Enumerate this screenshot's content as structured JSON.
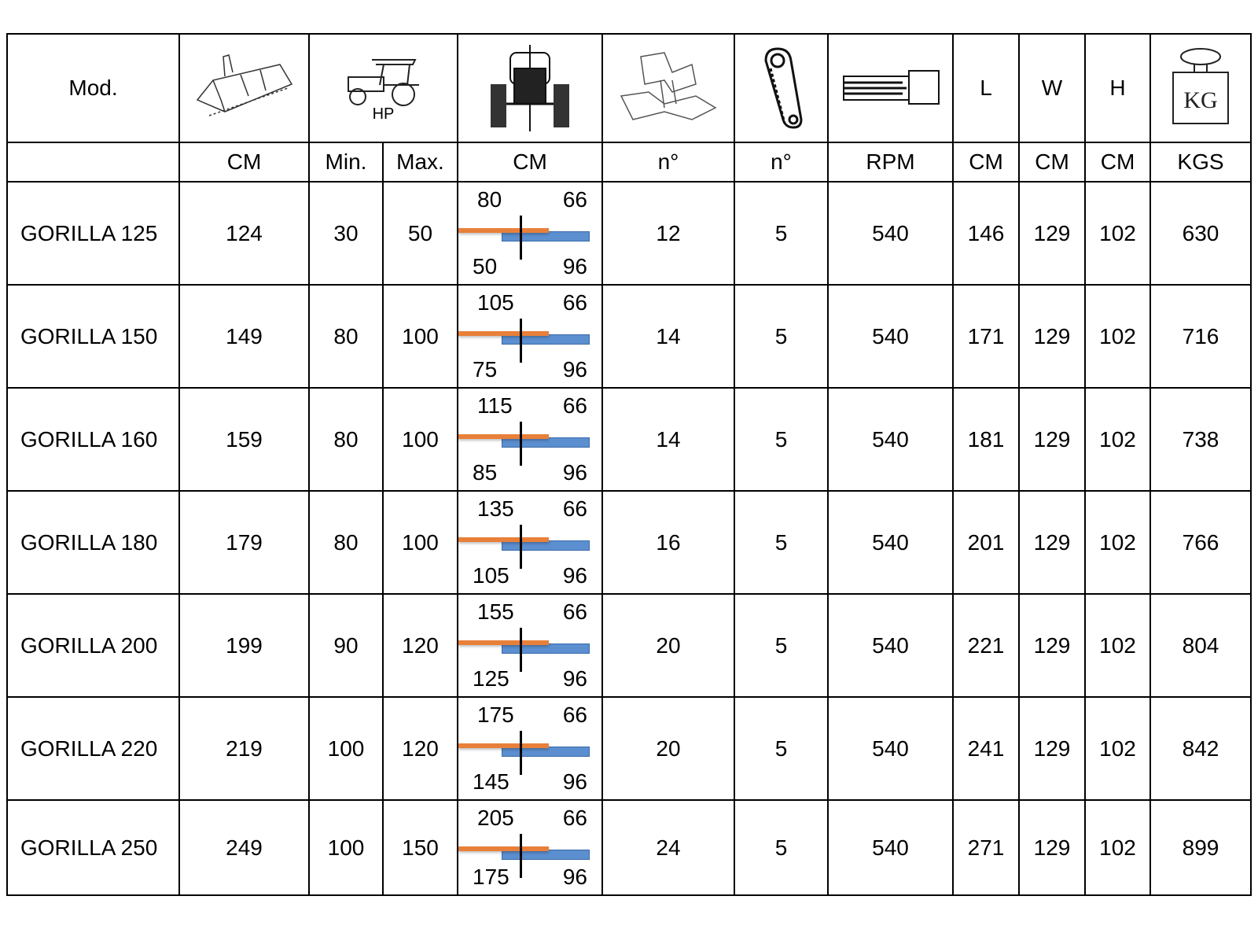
{
  "header": {
    "model_label": "Mod.",
    "hp_label": "HP",
    "length_label": "L",
    "width_label": "W",
    "height_label": "H",
    "weight_icon_text": "KG",
    "icons": [
      "working-width-icon",
      "tractor-side-icon",
      "tractor-rear-icon",
      "blade-icon",
      "belt-icon",
      "pto-shaft-icon",
      "weight-icon"
    ]
  },
  "units": [
    "CM",
    "Min.",
    "Max.",
    "CM",
    "n°",
    "n°",
    "RPM",
    "CM",
    "CM",
    "CM",
    "KGS"
  ],
  "colors": {
    "offset_bar_orange": "#e8803a",
    "offset_bar_blue": "#5b8fd0"
  },
  "rows": [
    {
      "model": "GORILLA 125",
      "cm": "124",
      "hp_min": "30",
      "hp_max": "50",
      "offset": {
        "tl": "80",
        "tr": "66",
        "bl": "50",
        "br": "96"
      },
      "blades": "12",
      "belts": "5",
      "rpm": "540",
      "l": "146",
      "w": "129",
      "h": "102",
      "kgs": "630"
    },
    {
      "model": "GORILLA 150",
      "cm": "149",
      "hp_min": "80",
      "hp_max": "100",
      "offset": {
        "tl": "105",
        "tr": "66",
        "bl": "75",
        "br": "96"
      },
      "blades": "14",
      "belts": "5",
      "rpm": "540",
      "l": "171",
      "w": "129",
      "h": "102",
      "kgs": "716"
    },
    {
      "model": "GORILLA 160",
      "cm": "159",
      "hp_min": "80",
      "hp_max": "100",
      "offset": {
        "tl": "115",
        "tr": "66",
        "bl": "85",
        "br": "96"
      },
      "blades": "14",
      "belts": "5",
      "rpm": "540",
      "l": "181",
      "w": "129",
      "h": "102",
      "kgs": "738"
    },
    {
      "model": "GORILLA 180",
      "cm": "179",
      "hp_min": "80",
      "hp_max": "100",
      "offset": {
        "tl": "135",
        "tr": "66",
        "bl": "105",
        "br": "96"
      },
      "blades": "16",
      "belts": "5",
      "rpm": "540",
      "l": "201",
      "w": "129",
      "h": "102",
      "kgs": "766"
    },
    {
      "model": "GORILLA 200",
      "cm": "199",
      "hp_min": "90",
      "hp_max": "120",
      "offset": {
        "tl": "155",
        "tr": "66",
        "bl": "125",
        "br": "96"
      },
      "blades": "20",
      "belts": "5",
      "rpm": "540",
      "l": "221",
      "w": "129",
      "h": "102",
      "kgs": "804"
    },
    {
      "model": "GORILLA 220",
      "cm": "219",
      "hp_min": "100",
      "hp_max": "120",
      "offset": {
        "tl": "175",
        "tr": "66",
        "bl": "145",
        "br": "96"
      },
      "blades": "20",
      "belts": "5",
      "rpm": "540",
      "l": "241",
      "w": "129",
      "h": "102",
      "kgs": "842"
    },
    {
      "model": "GORILLA 250",
      "cm": "249",
      "hp_min": "100",
      "hp_max": "150",
      "offset": {
        "tl": "205",
        "tr": "66",
        "bl": "175",
        "br": "96"
      },
      "blades": "24",
      "belts": "5",
      "rpm": "540",
      "l": "271",
      "w": "129",
      "h": "102",
      "kgs": "899"
    }
  ]
}
